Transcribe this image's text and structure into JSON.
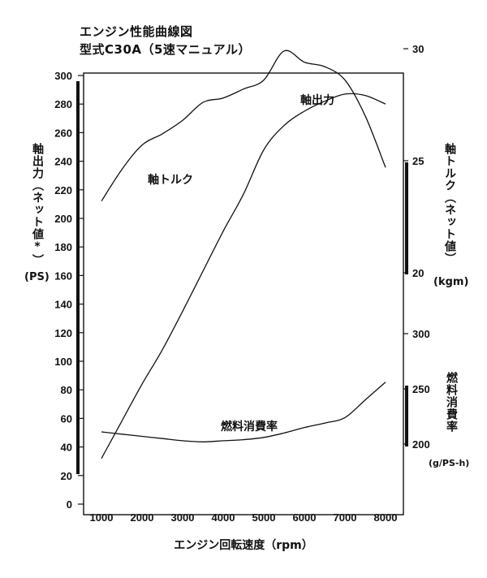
{
  "chart_data": {
    "type": "line",
    "title": "エンジン性能曲線図",
    "subtitle": "型式C30A（5速マニュアル）",
    "xlabel": "エンジン回転速度（rpm）",
    "x_ticks": [
      1000,
      2000,
      3000,
      4000,
      5000,
      6000,
      7000,
      8000
    ],
    "xlim": [
      700,
      8500
    ],
    "axes": {
      "left": {
        "label": "軸出力（ネット値*）",
        "unit": "(PS)",
        "ylim": [
          0,
          300
        ],
        "ticks": [
          0,
          20,
          40,
          60,
          80,
          100,
          120,
          140,
          160,
          180,
          200,
          220,
          240,
          260,
          280,
          300
        ]
      },
      "torque": {
        "label": "軸トルク（ネット値）",
        "unit": "(kgm)",
        "ticks": [
          20,
          25,
          30
        ]
      },
      "fuel": {
        "label": "燃料消費率",
        "unit": "(g/PS-h)",
        "ticks": [
          200,
          250,
          300
        ]
      }
    },
    "series": [
      {
        "name": "軸出力",
        "axis": "left",
        "x": [
          1000,
          1500,
          2000,
          2500,
          3000,
          3500,
          4000,
          4500,
          5000,
          5500,
          6000,
          6500,
          7000,
          7500,
          8000
        ],
        "y": [
          32,
          58,
          84,
          108,
          135,
          163,
          191,
          217,
          248,
          265,
          275,
          282,
          287,
          286,
          280
        ]
      },
      {
        "name": "軸トルク",
        "axis": "torque",
        "x": [
          1000,
          1500,
          2000,
          2500,
          3000,
          3500,
          4000,
          4500,
          5000,
          5500,
          6000,
          6500,
          7000,
          7500,
          8000
        ],
        "y": [
          23.2,
          24.6,
          25.7,
          26.2,
          26.8,
          27.6,
          27.8,
          28.2,
          28.6,
          29.9,
          29.4,
          29.2,
          28.6,
          27.0,
          24.7
        ]
      },
      {
        "name": "燃料消費率",
        "axis": "fuel",
        "x": [
          1000,
          1500,
          2000,
          2500,
          3000,
          3500,
          4000,
          4500,
          5000,
          5500,
          6000,
          6500,
          7000,
          7500,
          8000
        ],
        "y": [
          211,
          209,
          207,
          205,
          203,
          202,
          203,
          204,
          206,
          210,
          215,
          219,
          224,
          240,
          256
        ]
      }
    ]
  }
}
